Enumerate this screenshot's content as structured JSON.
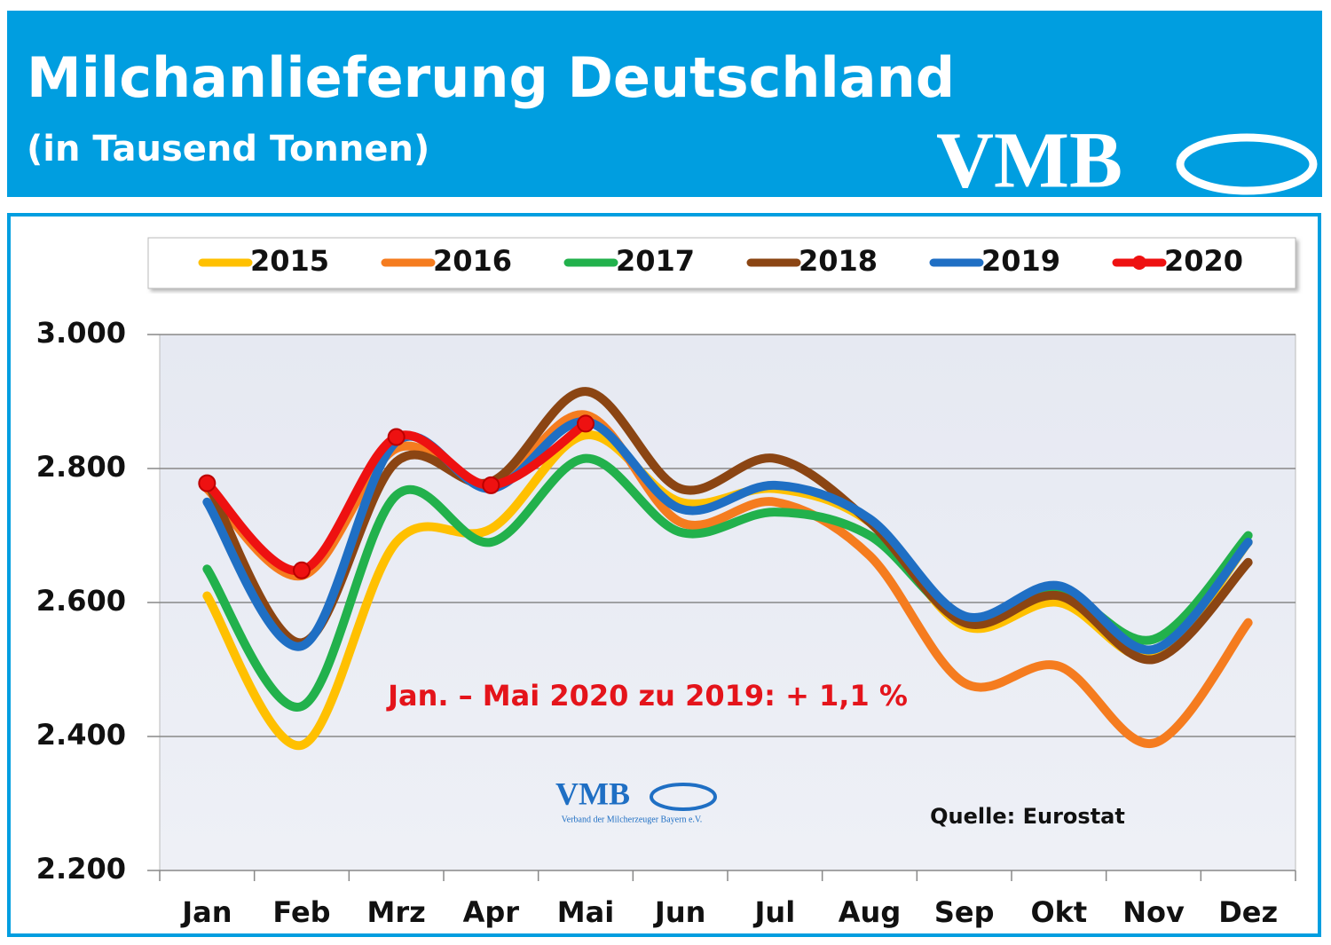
{
  "header": {
    "title": "Milchanlieferung Deutschland",
    "subtitle": "(in Tausend Tonnen)",
    "logo": "VMB"
  },
  "chart_data": {
    "type": "line",
    "categories": [
      "Jan",
      "Feb",
      "Mrz",
      "Apr",
      "Mai",
      "Jun",
      "Jul",
      "Aug",
      "Sep",
      "Okt",
      "Nov",
      "Dez"
    ],
    "series": [
      {
        "name": "2015",
        "color": "#ffc000",
        "values": [
          2610,
          2387,
          2690,
          2710,
          2850,
          2750,
          2770,
          2720,
          2565,
          2600,
          2520,
          2690
        ]
      },
      {
        "name": "2016",
        "color": "#f57c1f",
        "values": [
          2770,
          2640,
          2830,
          2775,
          2880,
          2720,
          2750,
          2670,
          2480,
          2505,
          2390,
          2570
        ]
      },
      {
        "name": "2017",
        "color": "#22b14c",
        "values": [
          2650,
          2445,
          2760,
          2690,
          2815,
          2705,
          2735,
          2700,
          2575,
          2615,
          2545,
          2700
        ]
      },
      {
        "name": "2018",
        "color": "#8b4513",
        "values": [
          2780,
          2540,
          2810,
          2780,
          2915,
          2770,
          2815,
          2720,
          2570,
          2610,
          2515,
          2660
        ]
      },
      {
        "name": "2019",
        "color": "#1f6fc4",
        "values": [
          2750,
          2535,
          2840,
          2770,
          2870,
          2740,
          2775,
          2725,
          2580,
          2625,
          2530,
          2690
        ]
      },
      {
        "name": "2020",
        "color": "#ee1111",
        "marker": "circle",
        "values": [
          2778,
          2648,
          2847,
          2775,
          2867,
          null,
          null,
          null,
          null,
          null,
          null,
          null
        ]
      }
    ],
    "ylim": [
      2200,
      3000
    ],
    "yticks": [
      {
        "value": 2200,
        "label": "2.200"
      },
      {
        "value": 2400,
        "label": "2.400"
      },
      {
        "value": 2600,
        "label": "2.600"
      },
      {
        "value": 2800,
        "label": "2.800"
      },
      {
        "value": 3000,
        "label": "3.000"
      }
    ],
    "grid": true,
    "legend": "top",
    "annotation": "Jan. –  Mai 2020 zu 2019: + 1,1 %",
    "source": "Quelle: Eurostat",
    "watermark": {
      "logo": "VMB",
      "text": "Verband der Milcherzeuger Bayern e.V."
    }
  }
}
